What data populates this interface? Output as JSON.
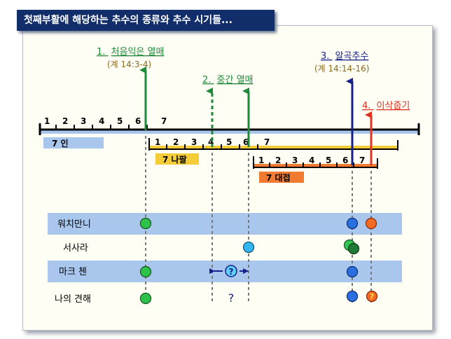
{
  "title": "첫째부활에 해당하는 추수의 종류와 추수 시기들...",
  "colors": {
    "navy": "#112e6a",
    "green": "#1e8a3a",
    "blue_arrow": "#16208a",
    "red": "#e03322",
    "band": "#a9c6ec",
    "gold": "#f3cc36",
    "orange": "#f07a30"
  },
  "events": [
    {
      "number": "1.",
      "name": "처음익은 열매",
      "ref": "(계 14:3-4)"
    },
    {
      "number": "2.",
      "name": "중간 열매",
      "ref": ""
    },
    {
      "number": "3.",
      "name": "알곡추수",
      "ref": "(계 14:14-16)"
    },
    {
      "number": "4.",
      "name": "이삭줍기",
      "ref": ""
    }
  ],
  "timelines": [
    {
      "label": "7 인",
      "ticks": [
        "1",
        "2",
        "3",
        "4",
        "5",
        "6",
        "7"
      ]
    },
    {
      "label": "7 나팔",
      "ticks": [
        "1",
        "2",
        "3",
        "4",
        "5",
        "6",
        "7"
      ]
    },
    {
      "label": "7 대접",
      "ticks": [
        "1",
        "2",
        "3",
        "4",
        "5",
        "6",
        "7"
      ]
    }
  ],
  "rows": [
    {
      "label": "워치만니",
      "marks": [
        "green-dot",
        "blue-dot",
        "orange-dot"
      ]
    },
    {
      "label": "서사라",
      "marks": [
        "light-blue-dot",
        "green-overlap-dot"
      ]
    },
    {
      "label": "마크 첸",
      "marks": [
        "green-dot",
        "question-range",
        "blue-dot"
      ]
    },
    {
      "label": "나의 견해",
      "marks": [
        "green-dot",
        "question-mark",
        "blue-dot",
        "orange-question-dot"
      ]
    }
  ],
  "question_symbol": "?"
}
